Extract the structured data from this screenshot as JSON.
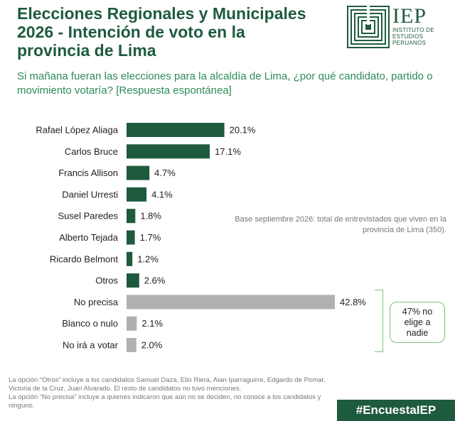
{
  "header": {
    "title": "Elecciones Regionales y Municipales 2026 - Intención de voto en la provincia de Lima",
    "subtitle": "Si mañana fueran las elecciones para la alcaldía de Lima, ¿por qué candidato, partido o movimiento votaría? [Respuesta espontánea]"
  },
  "logo": {
    "name": "IEP",
    "line1": "INSTITUTO DE",
    "line2": "ESTUDIOS",
    "line3": "PERUANOS",
    "icon": "iep-maze-logo-icon"
  },
  "base_note": "Base septiembre 2026:  total de entrevistados que viven en la provincia de Lima (350).",
  "callout": "47% no elige a nadie",
  "footnote": {
    "line1": "La opción “Otros” incluye a los candidatos Samuel Daza, Elio Riera, Alan Iparraguirre, Edgardo de Pomar, Victoria de la Cruz, Juan Alvarado.  El resto de candidatos no tuvo menciones.",
    "line2": "La opción “No precisa” incluye a quienes indicaron que aún no se deciden,  no conoce a los candidatos y ninguno."
  },
  "hashtag": "#EncuestaIEP",
  "colors": {
    "primary": "#1e5b3e",
    "gray": "#b0b0b0",
    "accent": "#7dc07d",
    "subtitle": "#2e8b57"
  },
  "chart_data": {
    "type": "bar",
    "orientation": "horizontal",
    "unit": "%",
    "categories": [
      "Rafael López Aliaga",
      "Carlos Bruce",
      "Francis Allison",
      "Daniel Urresti",
      "Susel Paredes",
      "Alberto Tejada",
      "Ricardo Belmont",
      "Otros",
      "No precisa",
      "Blanco o nulo",
      "No irá a votar"
    ],
    "values": [
      20.1,
      17.1,
      4.7,
      4.1,
      1.8,
      1.7,
      1.2,
      2.6,
      42.8,
      2.1,
      2.0
    ],
    "labels": [
      "20.1%",
      "17.1%",
      "4.7%",
      "4.1%",
      "1.8%",
      "1.7%",
      "1.2%",
      "2.6%",
      "42.8%",
      "2.1%",
      "2.0%"
    ],
    "bar_colors": [
      "#1e5b3e",
      "#1e5b3e",
      "#1e5b3e",
      "#1e5b3e",
      "#1e5b3e",
      "#1e5b3e",
      "#1e5b3e",
      "#1e5b3e",
      "#b0b0b0",
      "#b0b0b0",
      "#b0b0b0"
    ],
    "xlim": [
      0,
      42.8
    ],
    "grid": false,
    "legend": "none"
  }
}
